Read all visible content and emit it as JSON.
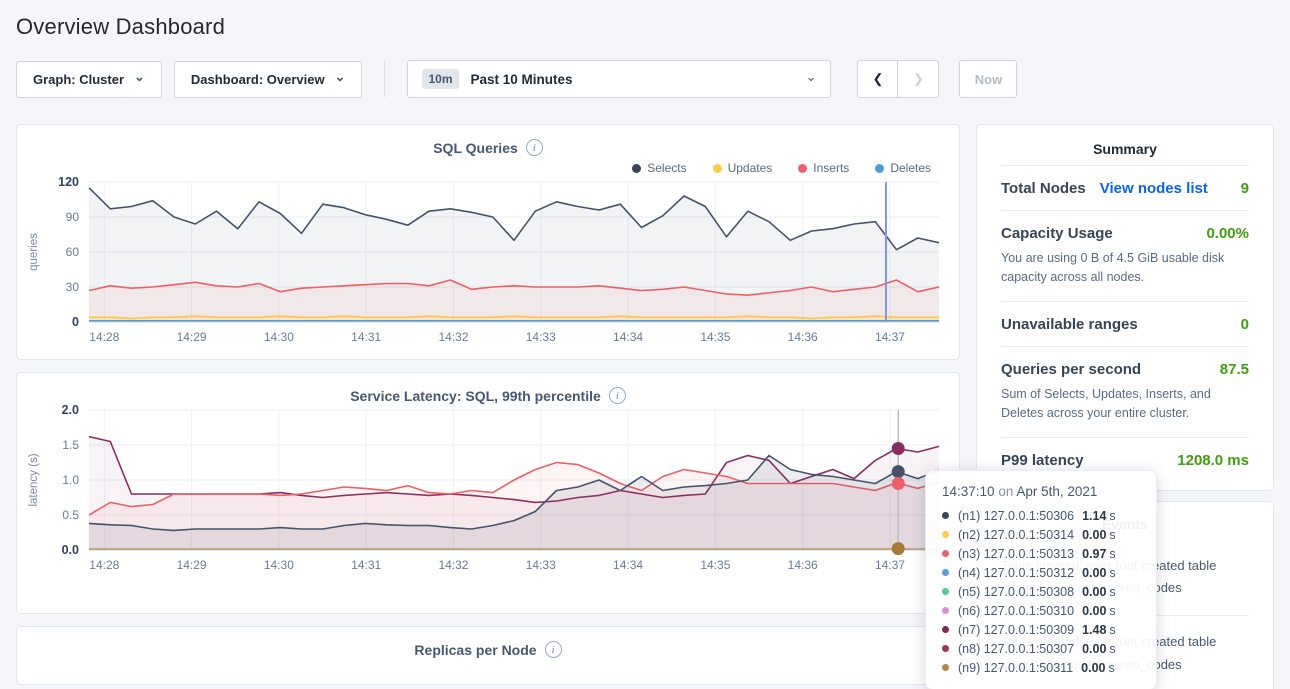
{
  "page": {
    "title": "Overview Dashboard"
  },
  "icons": {
    "info": "i",
    "chevron_down": "⌄",
    "prev": "❮",
    "next": "❯"
  },
  "toolbar": {
    "graph_dropdown": "Graph: Cluster",
    "dashboard_dropdown": "Dashboard: Overview",
    "time_badge": "10m",
    "time_label": "Past 10 Minutes",
    "now_label": "Now"
  },
  "summary": {
    "title": "Summary",
    "total_nodes_label": "Total Nodes",
    "view_nodes_link": "View nodes list",
    "total_nodes_value": "9",
    "capacity_label": "Capacity Usage",
    "capacity_value": "0.00%",
    "capacity_desc": "You are using 0 B of 4.5 GiB usable disk capacity across all nodes.",
    "unavailable_label": "Unavailable ranges",
    "unavailable_value": "0",
    "qps_label": "Queries per second",
    "qps_value": "87.5",
    "qps_desc": "Sum of Selects, Updates, Inserts, and Deletes across your entire cluster.",
    "p99_label": "P99 latency",
    "p99_value": "1208.0 ms",
    "accent_green": "#3da00c",
    "link_blue": "#0b64f0"
  },
  "events": {
    "title": "Events",
    "rows": [
      {
        "line1": "Table created: user root created table",
        "line2": "movr.public.user_promo_codes"
      },
      {
        "line1": "Table created: user root created table",
        "line2": "movr.public.user_promo_codes"
      }
    ]
  },
  "tooltip": {
    "time": "14:37:10",
    "on": "on",
    "date": "Apr 5th, 2021",
    "rows": [
      {
        "color": "#394455",
        "label": "(n1) 127.0.0.1:50306",
        "value": "1.14",
        "unit": "s"
      },
      {
        "color": "#ffcd44",
        "label": "(n2) 127.0.0.1:50314",
        "value": "0.00",
        "unit": "s"
      },
      {
        "color": "#f0606a",
        "label": "(n3) 127.0.0.1:50313",
        "value": "0.97",
        "unit": "s"
      },
      {
        "color": "#55a0dd",
        "label": "(n4) 127.0.0.1:50312",
        "value": "0.00",
        "unit": "s"
      },
      {
        "color": "#52cb90",
        "label": "(n5) 127.0.0.1:50308",
        "value": "0.00",
        "unit": "s"
      },
      {
        "color": "#de8ad2",
        "label": "(n6) 127.0.0.1:50310",
        "value": "0.00",
        "unit": "s"
      },
      {
        "color": "#7d2a59",
        "label": "(n7) 127.0.0.1:50309",
        "value": "1.48",
        "unit": "s"
      },
      {
        "color": "#a13449",
        "label": "(n8) 127.0.0.1:50307",
        "value": "0.00",
        "unit": "s"
      },
      {
        "color": "#b08a3e",
        "label": "(n9) 127.0.0.1:50311",
        "value": "0.00",
        "unit": "s"
      }
    ]
  },
  "chart_data": [
    {
      "id": "sql",
      "type": "area",
      "title": "SQL Queries",
      "ylabel": "queries",
      "ylim": [
        0,
        120
      ],
      "yticks": [
        0,
        30,
        60,
        90,
        120
      ],
      "ytick_labels": [
        "0",
        "30",
        "60",
        "90",
        "120"
      ],
      "xticks": [
        "14:28",
        "14:29",
        "14:30",
        "14:31",
        "14:32",
        "14:33",
        "14:34",
        "14:35",
        "14:36",
        "14:37"
      ],
      "legend": [
        {
          "label": "Selects",
          "color": "#394455"
        },
        {
          "label": "Updates",
          "color": "#ffcd44"
        },
        {
          "label": "Inserts",
          "color": "#f0606a"
        },
        {
          "label": "Deletes",
          "color": "#459fdd"
        }
      ],
      "series": [
        {
          "name": "Selects",
          "color": "#45526b",
          "fill_opacity": 0.07,
          "values": [
            115,
            97,
            99,
            104,
            90,
            84,
            95,
            80,
            103,
            93,
            76,
            101,
            98,
            92,
            88,
            83,
            95,
            97,
            94,
            90,
            70,
            95,
            103,
            99,
            96,
            101,
            81,
            91,
            108,
            99,
            73,
            95,
            86,
            70,
            78,
            80,
            84,
            86,
            62,
            72,
            68
          ]
        },
        {
          "name": "Inserts",
          "color": "#ef5e66",
          "fill_opacity": 0.07,
          "values": [
            27,
            31,
            29,
            30,
            32,
            34,
            31,
            30,
            33,
            26,
            29,
            30,
            31,
            32,
            33,
            33,
            31,
            36,
            28,
            30,
            31,
            30,
            30,
            30,
            31,
            29,
            27,
            28,
            30,
            27,
            24,
            23,
            25,
            27,
            30,
            26,
            28,
            30,
            36,
            26,
            30
          ]
        },
        {
          "name": "Updates",
          "color": "#ffc53d",
          "fill_opacity": 0.12,
          "values": [
            4,
            4,
            3,
            4,
            4,
            5,
            4,
            4,
            4,
            5,
            4,
            4,
            5,
            4,
            4,
            4,
            5,
            4,
            4,
            4,
            5,
            4,
            4,
            4,
            4,
            5,
            4,
            4,
            4,
            4,
            4,
            5,
            4,
            4,
            3,
            4,
            4,
            5,
            4,
            4,
            4
          ]
        },
        {
          "name": "Deletes",
          "color": "#4a9edc",
          "fill_opacity": 0,
          "values": [
            1,
            1,
            1,
            1,
            1,
            1,
            1,
            1,
            1,
            1,
            1,
            1,
            1,
            1,
            1,
            1,
            1,
            1,
            1,
            1,
            1,
            1,
            1,
            1,
            1,
            1,
            1,
            1,
            1,
            1,
            1,
            1,
            1,
            1,
            1,
            1,
            1,
            1,
            1,
            1,
            1
          ]
        }
      ],
      "crosshair": {
        "frac": 0.9376,
        "color": "#7b96ea",
        "width": 2
      }
    },
    {
      "id": "latency",
      "type": "area",
      "title": "Service Latency: SQL, 99th percentile",
      "ylabel": "latency (s)",
      "ylim": [
        0,
        2
      ],
      "yticks": [
        0,
        0.5,
        1,
        1.5,
        2
      ],
      "ytick_labels": [
        "0.0",
        "0.5",
        "1.0",
        "1.5",
        "2.0"
      ],
      "xticks": [
        "14:28",
        "14:29",
        "14:30",
        "14:31",
        "14:32",
        "14:33",
        "14:34",
        "14:35",
        "14:36",
        "14:37"
      ],
      "series": [
        {
          "name": "(n7) 127.0.0.1:50309",
          "color": "#8a2c60",
          "fill_opacity": 0.06,
          "values": [
            1.62,
            1.55,
            0.8,
            0.8,
            0.8,
            0.8,
            0.8,
            0.8,
            0.8,
            0.82,
            0.78,
            0.75,
            0.78,
            0.8,
            0.82,
            0.8,
            0.78,
            0.8,
            0.78,
            0.75,
            0.72,
            0.68,
            0.7,
            0.75,
            0.78,
            0.85,
            0.8,
            0.75,
            0.78,
            0.8,
            1.25,
            1.35,
            1.28,
            0.95,
            1.05,
            1.15,
            1.02,
            1.28,
            1.45,
            1.4,
            1.48
          ]
        },
        {
          "name": "(n3) 127.0.0.1:50313",
          "color": "#ef5e66",
          "fill_opacity": 0.07,
          "values": [
            0.5,
            0.68,
            0.62,
            0.65,
            0.8,
            0.8,
            0.8,
            0.8,
            0.8,
            0.78,
            0.8,
            0.85,
            0.9,
            0.88,
            0.85,
            0.92,
            0.82,
            0.8,
            0.85,
            0.82,
            1.0,
            1.15,
            1.25,
            1.22,
            1.1,
            0.95,
            0.85,
            1.05,
            1.15,
            1.1,
            1.05,
            0.95,
            0.95,
            0.95,
            0.95,
            0.95,
            0.9,
            0.85,
            0.96,
            0.88,
            0.97
          ]
        },
        {
          "name": "(n1) 127.0.0.1:50306",
          "color": "#45526b",
          "fill_opacity": 0.1,
          "values": [
            0.38,
            0.36,
            0.35,
            0.3,
            0.28,
            0.3,
            0.3,
            0.3,
            0.3,
            0.32,
            0.3,
            0.3,
            0.35,
            0.38,
            0.36,
            0.35,
            0.35,
            0.32,
            0.3,
            0.35,
            0.42,
            0.55,
            0.85,
            0.9,
            1.0,
            0.85,
            1.05,
            0.85,
            0.9,
            0.92,
            0.95,
            1.0,
            1.35,
            1.15,
            1.08,
            1.05,
            1.0,
            0.95,
            1.12,
            1.02,
            1.14
          ]
        },
        {
          "name": "(n9) 127.0.0.1:50311",
          "color": "#a87a33",
          "fill_opacity": 0,
          "values": [
            0.01,
            0.01,
            0.01,
            0.01,
            0.01,
            0.01,
            0.01,
            0.01,
            0.01,
            0.01,
            0.01,
            0.01,
            0.01,
            0.01,
            0.01,
            0.01,
            0.01,
            0.01,
            0.01,
            0.01,
            0.01,
            0.01,
            0.01,
            0.01,
            0.01,
            0.01,
            0.01,
            0.01,
            0.01,
            0.01,
            0.01,
            0.01,
            0.01,
            0.01,
            0.01,
            0.01,
            0.01,
            0.01,
            0.01,
            0.01,
            0.01
          ]
        }
      ],
      "crosshair": {
        "frac": 0.952,
        "color": "#b9bcc4",
        "width": 1.5
      },
      "dots": [
        {
          "color": "#8a2c60",
          "value": 1.45
        },
        {
          "color": "#45526b",
          "value": 1.12
        },
        {
          "color": "#ef5e66",
          "value": 0.95
        },
        {
          "color": "#a87a33",
          "value": 0.02
        }
      ]
    },
    {
      "id": "replicas",
      "type": "area",
      "title": "Replicas per Node"
    }
  ]
}
